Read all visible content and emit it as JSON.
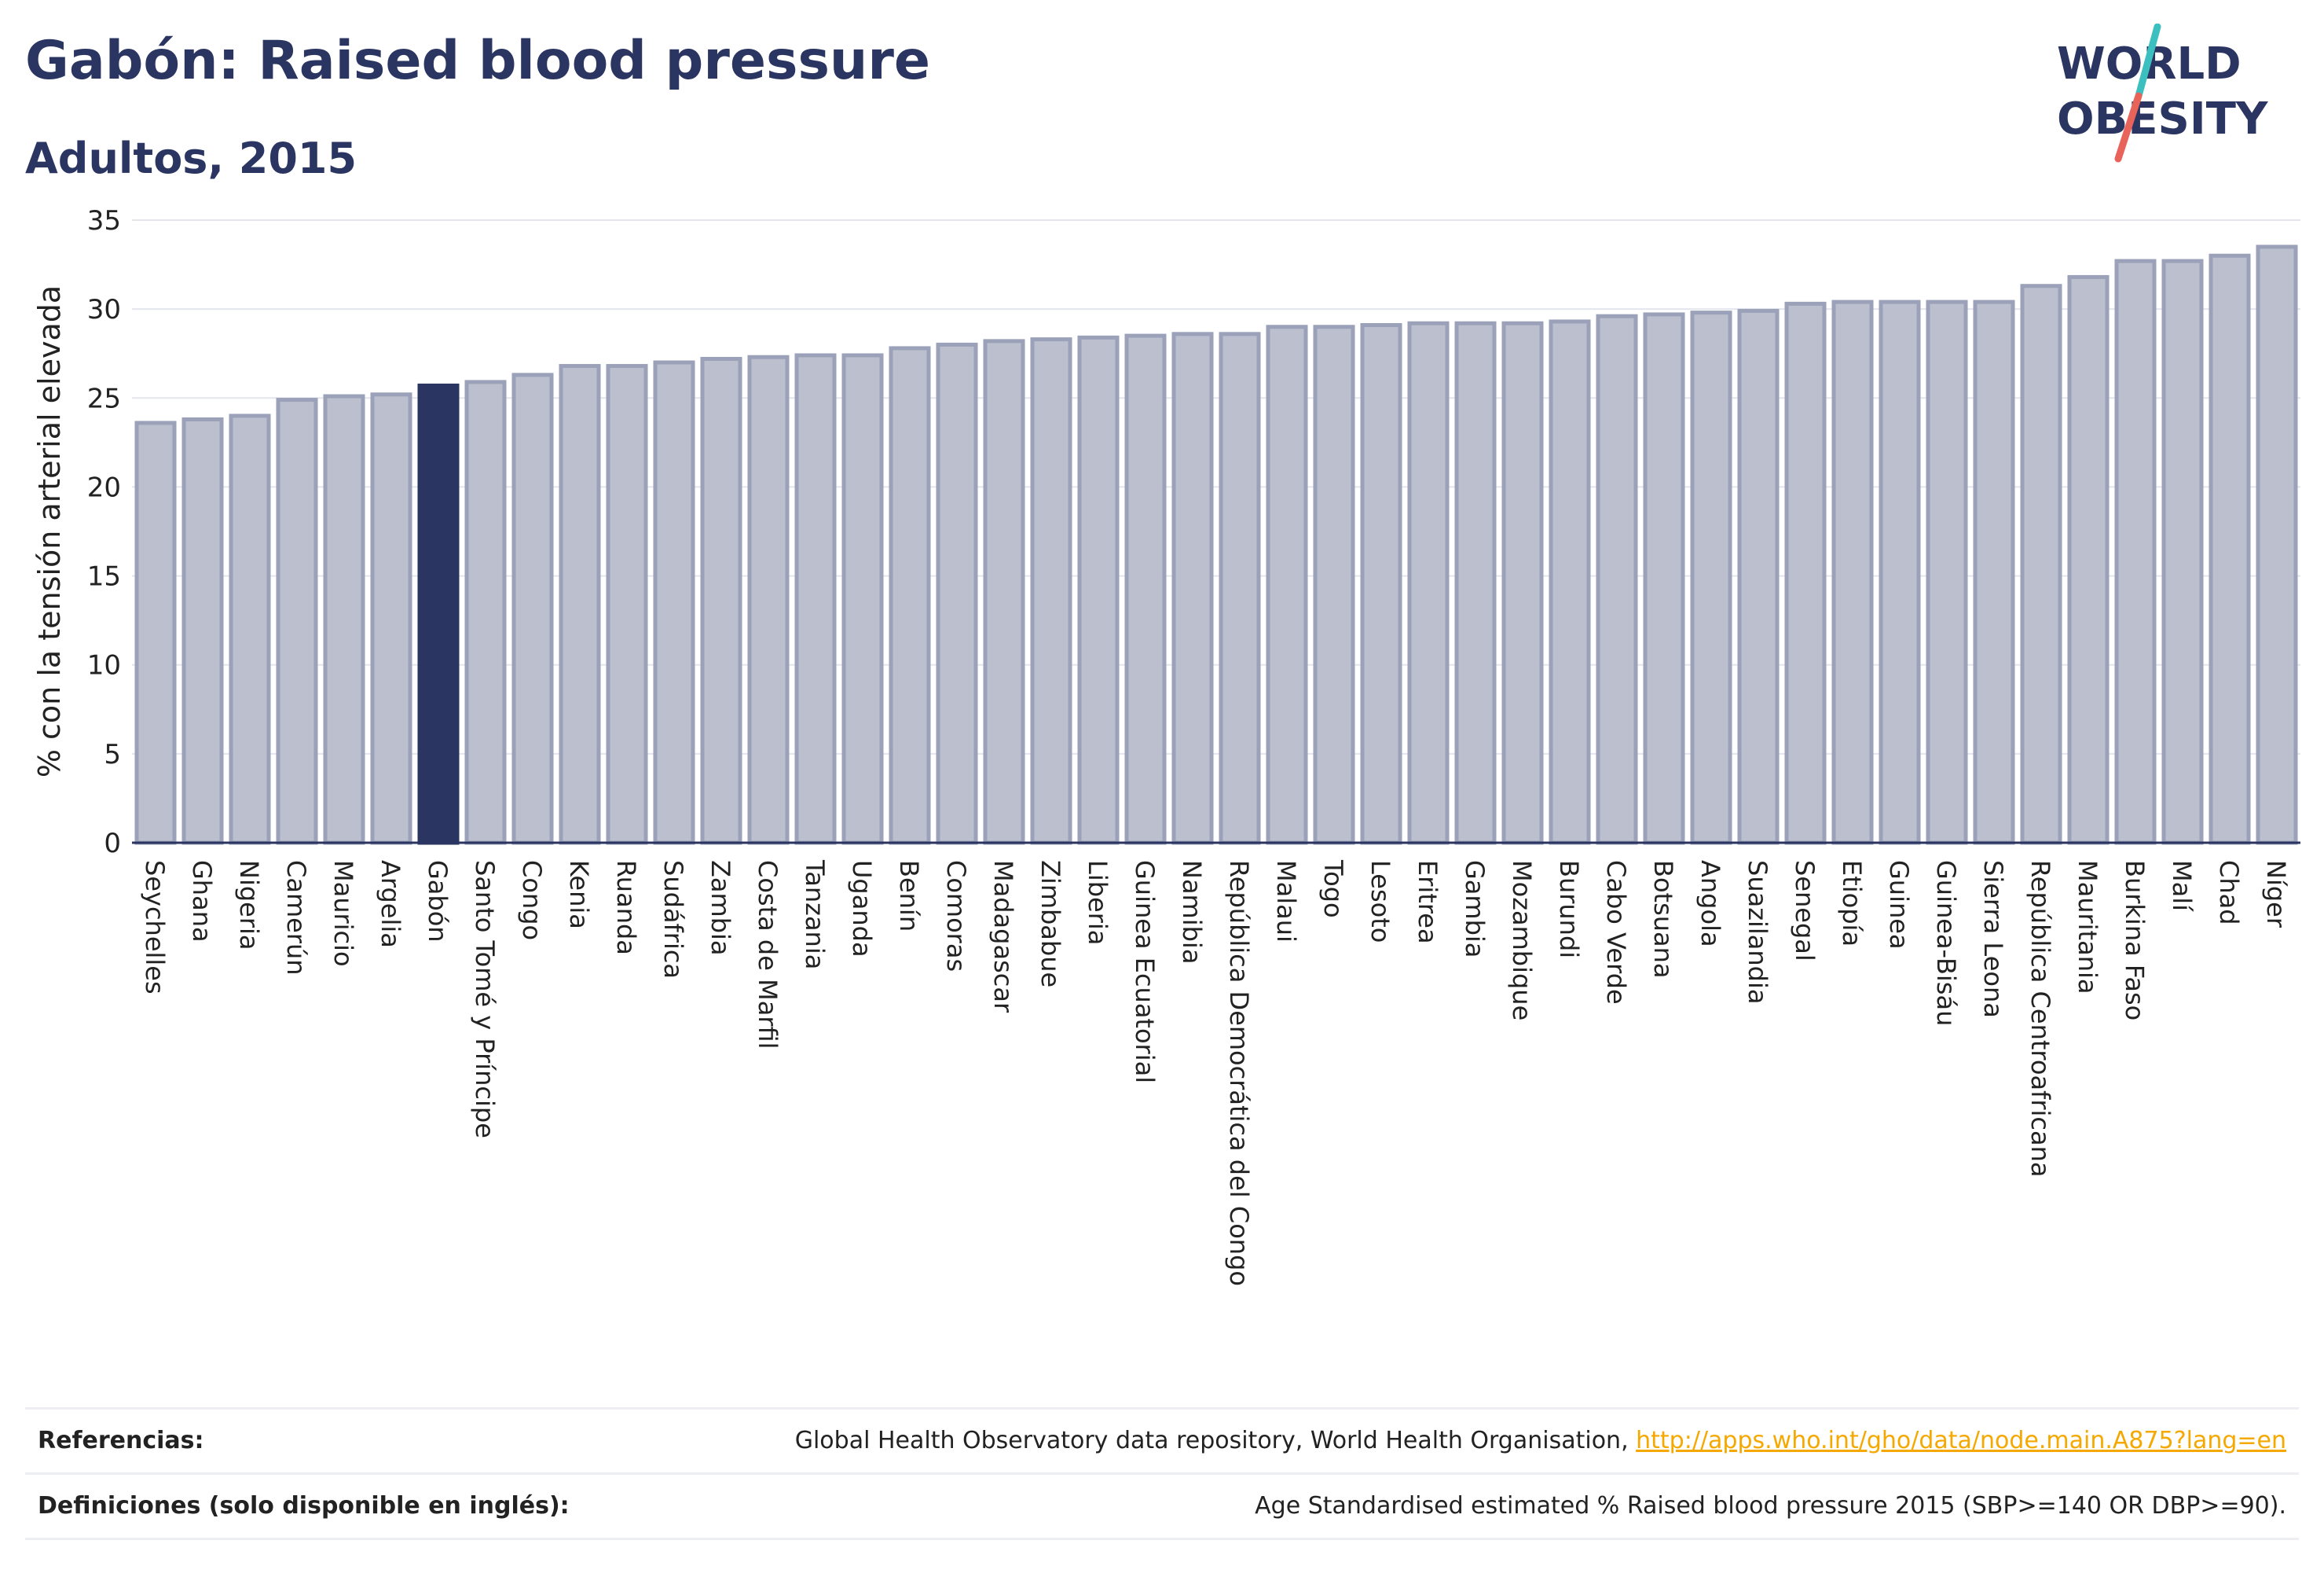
{
  "header": {
    "title": "Gabón: Raised blood pressure",
    "subtitle": "Adultos, 2015"
  },
  "logo": {
    "line1": "WORLD",
    "line2": "OBESITY",
    "accent_teal": "#3cbfbf",
    "accent_coral": "#e8645a"
  },
  "colors": {
    "bar_fill": "#bcc0ce",
    "bar_stroke": "#9aa1b8",
    "highlight_fill": "#2b3561",
    "grid": "#e4e6ee",
    "text": "#2b3561"
  },
  "chart_data": {
    "type": "bar",
    "title": "Gabón: Raised blood pressure",
    "subtitle": "Adultos, 2015",
    "ylabel": "% con la tensión arterial elevada",
    "xlabel": "",
    "ylim": [
      0,
      35
    ],
    "yticks": [
      0,
      5,
      10,
      15,
      20,
      25,
      30,
      35
    ],
    "grid": true,
    "highlight": "Gabón",
    "categories": [
      "Seychelles",
      "Ghana",
      "Nigeria",
      "Camerún",
      "Mauricio",
      "Argelia",
      "Gabón",
      "Santo Tomé y Príncipe",
      "Congo",
      "Kenia",
      "Ruanda",
      "Sudáfrica",
      "Zambia",
      "Costa de Marfil",
      "Tanzania",
      "Uganda",
      "Benín",
      "Comoras",
      "Madagascar",
      "Zimbabue",
      "Liberia",
      "Guinea Ecuatorial",
      "Namibia",
      "República Democrática del Congo",
      "Malaui",
      "Togo",
      "Lesoto",
      "Eritrea",
      "Gambia",
      "Mozambique",
      "Burundi",
      "Cabo Verde",
      "Botsuana",
      "Angola",
      "Suazilandia",
      "Senegal",
      "Etiopía",
      "Guinea",
      "Guinea-Bisáu",
      "Sierra Leona",
      "República Centroafricana",
      "Mauritania",
      "Burkina Faso",
      "Malí",
      "Chad",
      "Níger"
    ],
    "values": [
      23.6,
      23.8,
      24.0,
      24.9,
      25.1,
      25.2,
      25.7,
      25.9,
      26.3,
      26.8,
      26.8,
      27.0,
      27.2,
      27.3,
      27.4,
      27.4,
      27.8,
      28.0,
      28.2,
      28.3,
      28.4,
      28.5,
      28.6,
      28.6,
      29.0,
      29.0,
      29.1,
      29.2,
      29.2,
      29.2,
      29.3,
      29.6,
      29.7,
      29.8,
      29.9,
      30.3,
      30.4,
      30.4,
      30.4,
      30.4,
      31.3,
      31.8,
      32.7,
      32.7,
      33.0,
      33.5
    ]
  },
  "footer": {
    "references_label": "Referencias:",
    "references_text": "Global Health Observatory data repository, World Health Organisation, ",
    "references_link": "http://apps.who.int/gho/data/node.main.A875?lang=en",
    "definitions_label": "Definiciones (solo disponible en inglés):",
    "definitions_text": "Age Standardised estimated % Raised blood pressure 2015 (SBP>=140 OR DBP>=90)."
  }
}
